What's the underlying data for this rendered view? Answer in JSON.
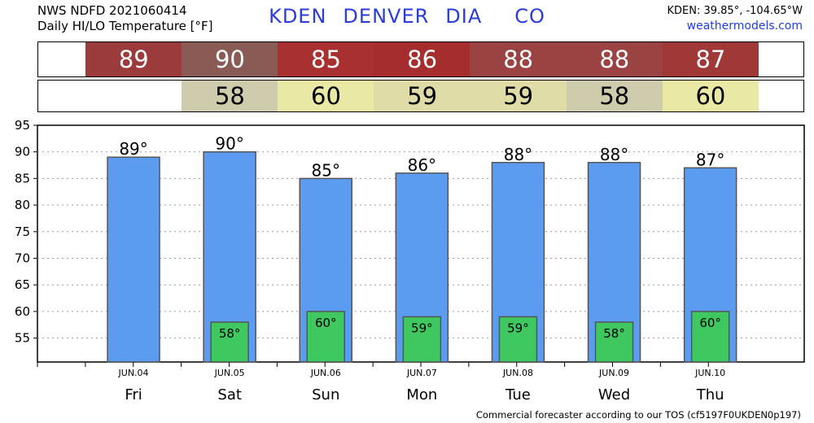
{
  "header": {
    "source_line": "NWS NDFD 2021060414",
    "product_line": "Daily HI/LO Temperature [°F]",
    "station_parts": [
      "KDEN",
      "DENVER",
      "DIA",
      "CO"
    ],
    "coords": "KDEN: 39.85°, -104.65°W",
    "site": "weathermodels.com"
  },
  "hi_strip": [
    {
      "value": "89",
      "color": "#9c3b3b"
    },
    {
      "value": "90",
      "color": "#8a5a55"
    },
    {
      "value": "85",
      "color": "#a83030"
    },
    {
      "value": "86",
      "color": "#a52d2d"
    },
    {
      "value": "88",
      "color": "#9b4343"
    },
    {
      "value": "88",
      "color": "#9b4343"
    },
    {
      "value": "87",
      "color": "#a13838"
    }
  ],
  "lo_strip": [
    {
      "value": "",
      "color": "#ffffff"
    },
    {
      "value": "58",
      "color": "#cfcbad"
    },
    {
      "value": "60",
      "color": "#e9e8a4"
    },
    {
      "value": "59",
      "color": "#dfdca8"
    },
    {
      "value": "59",
      "color": "#dfdca8"
    },
    {
      "value": "58",
      "color": "#cfcbad"
    },
    {
      "value": "60",
      "color": "#e9e8a4"
    }
  ],
  "chart_data": {
    "type": "bar",
    "categories": [
      "JUN.04",
      "JUN.05",
      "JUN.06",
      "JUN.07",
      "JUN.08",
      "JUN.09",
      "JUN.10"
    ],
    "weekdays": [
      "Fri",
      "Sat",
      "Sun",
      "Mon",
      "Tue",
      "Wed",
      "Thu"
    ],
    "series": [
      {
        "values": [
          89,
          90,
          85,
          86,
          88,
          88,
          87
        ],
        "color": "#5b9cf0",
        "labels": [
          "89°",
          "90°",
          "85°",
          "86°",
          "88°",
          "88°",
          "87°"
        ]
      },
      {
        "values": [
          null,
          58,
          60,
          59,
          59,
          58,
          60
        ],
        "color": "#3fc760",
        "labels": [
          "",
          "58°",
          "60°",
          "59°",
          "59°",
          "58°",
          "60°"
        ]
      }
    ],
    "yticks": [
      55,
      60,
      65,
      70,
      75,
      80,
      85,
      90,
      95
    ],
    "ylim": [
      51,
      95
    ],
    "grid": true
  },
  "footer": "Commercial forecaster according to our TOS (cf5197F0UKDEN0p197)"
}
